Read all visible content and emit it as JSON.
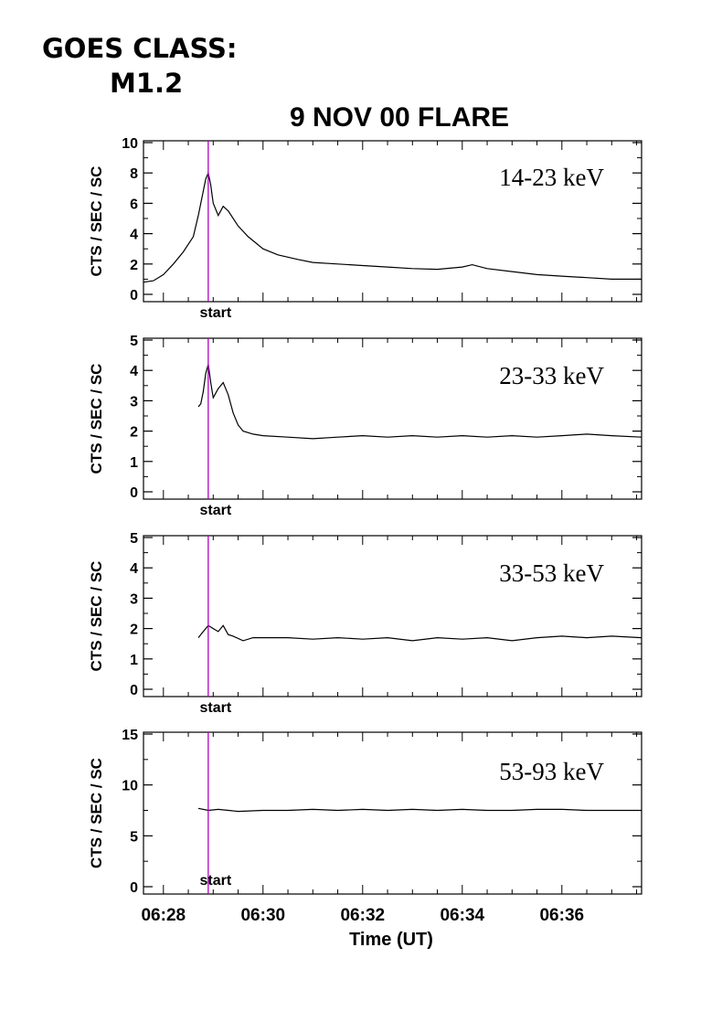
{
  "header": {
    "goes_class_label": "GOES CLASS:",
    "goes_class_value": "M1.2"
  },
  "chart_data": {
    "type": "line",
    "title": "9 NOV 00 FLARE",
    "xlabel": "Time (UT)",
    "x_unit": "minutes after 06:28 UT",
    "x_ticks": [
      0,
      2,
      4,
      6,
      8
    ],
    "x_tick_labels": [
      "06:28",
      "06:30",
      "06:32",
      "06:34",
      "06:36"
    ],
    "xlim": [
      -0.4,
      9.6
    ],
    "start_marker": {
      "x": 0.9,
      "label": "start",
      "color": "#b000c0"
    },
    "panels": [
      {
        "band": "14-23 keV",
        "ylabel": "CTS / SEC / SC",
        "ylim": [
          0,
          10
        ],
        "y_ticks": [
          0,
          2,
          4,
          6,
          8,
          10
        ],
        "y_tick_labels": [
          "0",
          "2",
          "4",
          "6",
          "8",
          "10"
        ],
        "series": {
          "x": [
            -0.4,
            -0.2,
            0.0,
            0.2,
            0.4,
            0.6,
            0.7,
            0.8,
            0.85,
            0.9,
            0.95,
            1.0,
            1.1,
            1.2,
            1.3,
            1.5,
            1.7,
            2.0,
            2.3,
            2.7,
            3.0,
            3.5,
            4.0,
            4.5,
            5.0,
            5.5,
            6.0,
            6.2,
            6.5,
            7.0,
            7.5,
            8.0,
            8.5,
            9.0,
            9.6
          ],
          "y": [
            0.8,
            0.9,
            1.3,
            2.0,
            2.8,
            3.8,
            5.2,
            6.8,
            7.6,
            8.0,
            7.2,
            6.0,
            5.2,
            5.8,
            5.5,
            4.5,
            3.8,
            3.0,
            2.6,
            2.3,
            2.1,
            2.0,
            1.9,
            1.8,
            1.7,
            1.65,
            1.8,
            1.95,
            1.7,
            1.5,
            1.3,
            1.2,
            1.1,
            1.0,
            1.0
          ]
        }
      },
      {
        "band": "23-33 keV",
        "ylabel": "CTS / SEC / SC",
        "ylim": [
          0,
          5
        ],
        "y_ticks": [
          0,
          1,
          2,
          3,
          4,
          5
        ],
        "y_tick_labels": [
          "0",
          "1",
          "2",
          "3",
          "4",
          "5"
        ],
        "series": {
          "x": [
            0.7,
            0.75,
            0.8,
            0.85,
            0.9,
            0.95,
            1.0,
            1.1,
            1.2,
            1.3,
            1.4,
            1.5,
            1.6,
            1.8,
            2.0,
            2.5,
            3.0,
            3.5,
            4.0,
            4.5,
            5.0,
            5.5,
            6.0,
            6.5,
            7.0,
            7.5,
            8.0,
            8.5,
            9.0,
            9.6
          ],
          "y": [
            2.8,
            2.9,
            3.3,
            3.9,
            4.2,
            3.6,
            3.1,
            3.4,
            3.6,
            3.2,
            2.6,
            2.2,
            2.0,
            1.9,
            1.85,
            1.8,
            1.75,
            1.8,
            1.85,
            1.8,
            1.85,
            1.8,
            1.85,
            1.8,
            1.85,
            1.8,
            1.85,
            1.9,
            1.85,
            1.8
          ]
        }
      },
      {
        "band": "33-53 keV",
        "ylabel": "CTS / SEC / SC",
        "ylim": [
          0,
          5
        ],
        "y_ticks": [
          0,
          1,
          2,
          3,
          4,
          5
        ],
        "y_tick_labels": [
          "0",
          "1",
          "2",
          "3",
          "4",
          "5"
        ],
        "series": {
          "x": [
            0.7,
            0.8,
            0.9,
            1.0,
            1.1,
            1.2,
            1.3,
            1.4,
            1.6,
            1.8,
            2.0,
            2.5,
            3.0,
            3.5,
            4.0,
            4.5,
            5.0,
            5.5,
            6.0,
            6.5,
            7.0,
            7.5,
            8.0,
            8.5,
            9.0,
            9.6
          ],
          "y": [
            1.7,
            1.9,
            2.1,
            2.0,
            1.9,
            2.1,
            1.8,
            1.75,
            1.6,
            1.7,
            1.7,
            1.7,
            1.65,
            1.7,
            1.65,
            1.7,
            1.6,
            1.7,
            1.65,
            1.7,
            1.6,
            1.7,
            1.75,
            1.7,
            1.75,
            1.7
          ]
        }
      },
      {
        "band": "53-93 keV",
        "ylabel": "CTS / SEC / SC",
        "ylim": [
          0,
          15
        ],
        "y_ticks": [
          0,
          5,
          10,
          15
        ],
        "y_tick_labels": [
          "0",
          "5",
          "10",
          "15"
        ],
        "series": {
          "x": [
            0.7,
            0.9,
            1.1,
            1.5,
            2.0,
            2.5,
            3.0,
            3.5,
            4.0,
            4.5,
            5.0,
            5.5,
            6.0,
            6.5,
            7.0,
            7.5,
            8.0,
            8.5,
            9.0,
            9.6
          ],
          "y": [
            7.7,
            7.5,
            7.6,
            7.4,
            7.5,
            7.5,
            7.6,
            7.5,
            7.6,
            7.5,
            7.6,
            7.5,
            7.6,
            7.5,
            7.5,
            7.6,
            7.6,
            7.5,
            7.5,
            7.5
          ]
        }
      }
    ]
  }
}
